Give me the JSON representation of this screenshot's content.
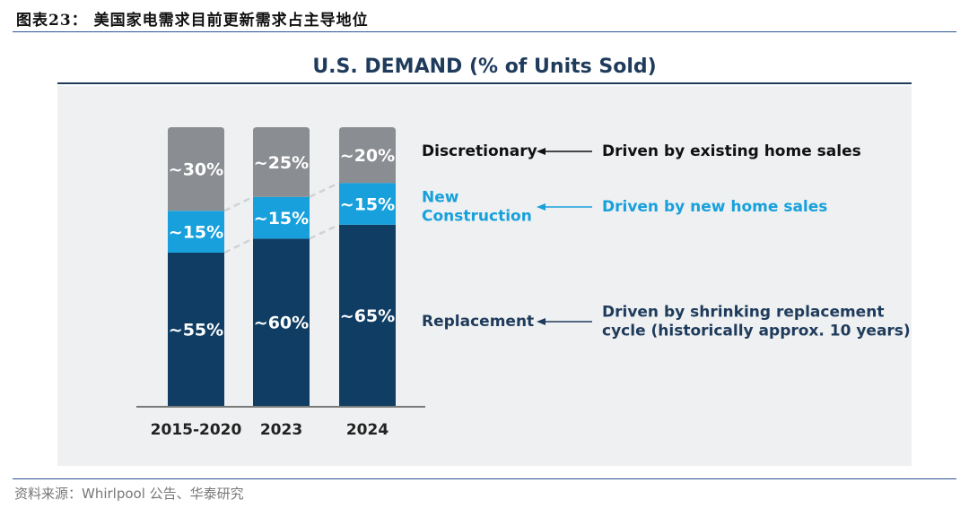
{
  "figure_title": "图表23： 美国家电需求目前更新需求占主导地位",
  "source_note": "资料来源：Whirlpool 公告、华泰研究",
  "chart_data": {
    "type": "bar",
    "stacked": true,
    "title": "U.S. DEMAND (% of Units Sold)",
    "categories": [
      "2015-2020",
      "2023",
      "2024"
    ],
    "ylim": [
      0,
      100
    ],
    "series": [
      {
        "name": "Replacement",
        "values": [
          55,
          60,
          65
        ],
        "labels": [
          "~55%",
          "~60%",
          "~65%"
        ],
        "color": "#0f3d63"
      },
      {
        "name": "New Construction",
        "values": [
          15,
          15,
          15
        ],
        "labels": [
          "~15%",
          "~15%",
          "~15%"
        ],
        "color": "#17a0dc"
      },
      {
        "name": "Discretionary",
        "values": [
          30,
          25,
          20
        ],
        "labels": [
          "~30%",
          "~25%",
          "~20%"
        ],
        "color": "#8a8d91"
      }
    ],
    "legend": [
      {
        "series": "Discretionary",
        "label_lines": [
          "Discretionary"
        ],
        "driver_lines": [
          "Driven by existing home sales"
        ],
        "color": "#111111",
        "arrow_color": "#111111"
      },
      {
        "series": "New Construction",
        "label_lines": [
          "New",
          "Construction"
        ],
        "driver_lines": [
          "Driven by new home sales"
        ],
        "color": "#17a0dc",
        "arrow_color": "#17a0dc"
      },
      {
        "series": "Replacement",
        "label_lines": [
          "Replacement"
        ],
        "driver_lines": [
          "Driven by shrinking replacement",
          "cycle (historically approx. 10 years)"
        ],
        "color": "#1f3b5c",
        "arrow_color": "#1f3b5c"
      }
    ],
    "legend_placement": "right",
    "grid": false
  }
}
